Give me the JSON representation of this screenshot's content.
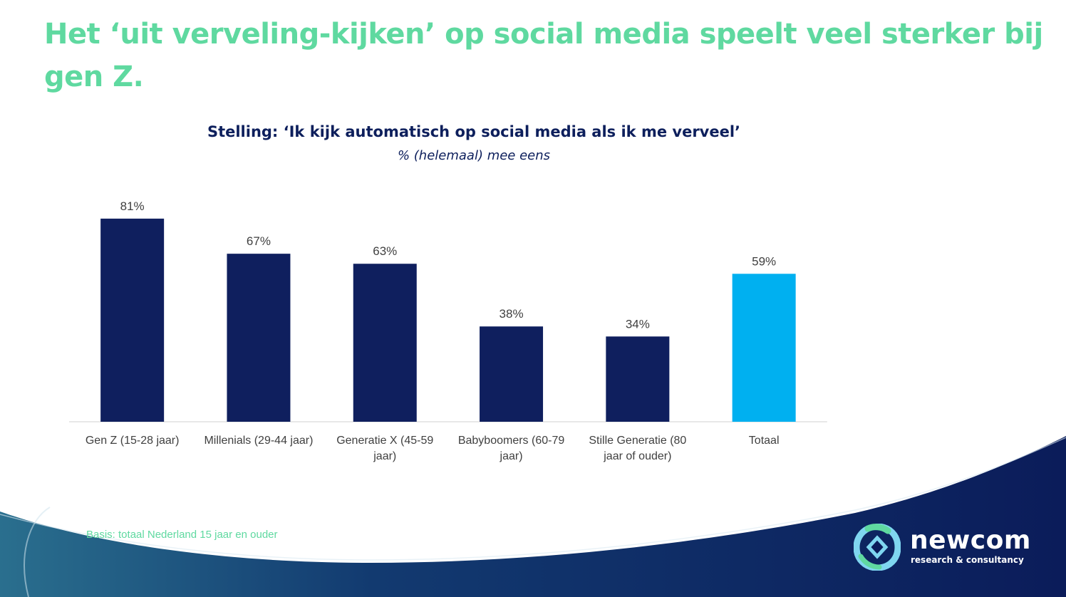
{
  "slide": {
    "title": "Het ‘uit verveling-kijken’ op social media speelt veel sterker bij gen Z.",
    "basis": "Basis: totaal Nederland 15 jaar en ouder"
  },
  "logo": {
    "name": "newcom",
    "tagline": "research & consultancy"
  },
  "colors": {
    "title_green": "#5fd9a0",
    "navy": "#0d1f5c",
    "bar_navy": "#0f1f5e",
    "bar_highlight": "#00b0f0"
  },
  "chart_data": {
    "type": "bar",
    "title": "Stelling: ‘Ik kijk automatisch op social media als ik me verveel’",
    "subtitle": "% (helemaal) mee eens",
    "categories": [
      [
        "Gen Z (15-28 jaar)"
      ],
      [
        "Millenials (29-44 jaar)"
      ],
      [
        "Generatie X (45-59",
        "jaar)"
      ],
      [
        "Babyboomers (60-79",
        "jaar)"
      ],
      [
        "Stille Generatie (80",
        "jaar of ouder)"
      ],
      [
        "Totaal"
      ]
    ],
    "values": [
      81,
      67,
      63,
      38,
      34,
      59
    ],
    "value_labels": [
      "81%",
      "67%",
      "63%",
      "38%",
      "34%",
      "59%"
    ],
    "highlight_index": 5,
    "ylim": [
      0,
      100
    ],
    "xlabel": "",
    "ylabel": "",
    "grid": false,
    "legend": "none"
  }
}
